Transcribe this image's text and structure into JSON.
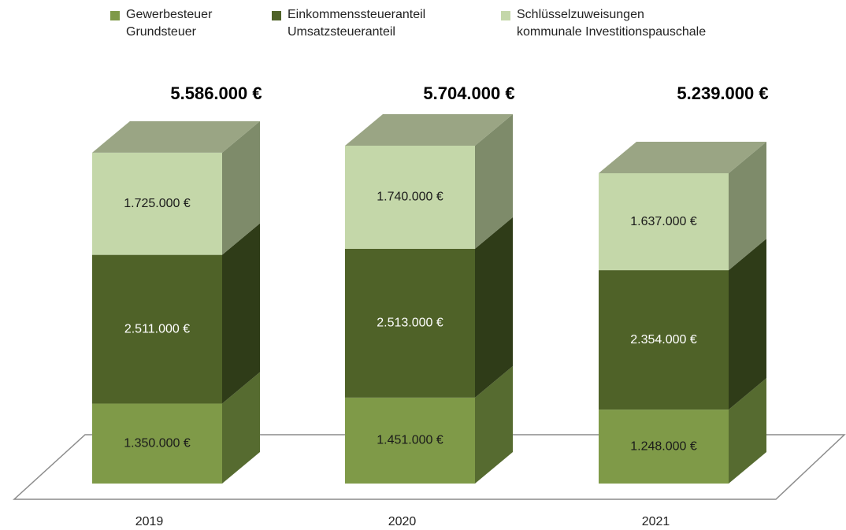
{
  "chart_data": {
    "type": "bar3d_stacked",
    "categories": [
      "2019",
      "2020",
      "2021"
    ],
    "series": [
      {
        "name": "Gewerbesteuer\nGrundsteuer",
        "color": "#7f9a48",
        "side_color": "#566b30",
        "label_color": "#1a1a1a",
        "values": [
          1350000,
          1451000,
          1248000
        ],
        "value_labels": [
          "1.350.000 €",
          "1.451.000 €",
          "1.248.000 €"
        ]
      },
      {
        "name": "Einkommenssteueranteil\nUmsatzsteueranteil",
        "color": "#4f6228",
        "side_color": "#2f3c18",
        "label_color": "#ffffff",
        "values": [
          2511000,
          2513000,
          2354000
        ],
        "value_labels": [
          "2.511.000 €",
          "2.513.000 €",
          "2.354.000 €"
        ]
      },
      {
        "name": "Schlüsselzuweisungen\nkommunale Investitionspauschale",
        "color": "#c4d7a9",
        "side_color": "#7e8b6a",
        "label_color": "#1a1a1a",
        "values": [
          1725000,
          1740000,
          1637000
        ],
        "value_labels": [
          "1.725.000 €",
          "1.740.000 €",
          "1.637.000 €"
        ]
      }
    ],
    "totals": [
      5586000,
      5704000,
      5239000
    ],
    "total_labels": [
      "5.586.000 €",
      "5.704.000 €",
      "5.239.000 €"
    ],
    "top_color": "#9aa584"
  }
}
